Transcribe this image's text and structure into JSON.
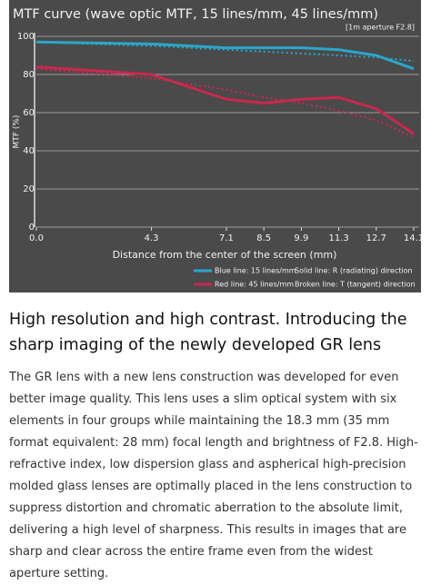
{
  "chart_data": {
    "type": "line",
    "title": "MTF curve (wave optic MTF, 15 lines/mm, 45 lines/mm)",
    "subtitle": "[1m aperture F2.8]",
    "x_label": "Distance from the center of the screen (mm)",
    "y_label": "MTF (%)",
    "x": [
      0,
      4.3,
      7.1,
      8.5,
      9.9,
      11.3,
      12.7,
      14.1
    ],
    "series": [
      {
        "color": "#2ba6c9",
        "dashed": false,
        "values": [
          97,
          96,
          94,
          94,
          94,
          93,
          90,
          83
        ]
      },
      {
        "color": "#2ba6c9",
        "dashed": true,
        "values": [
          97,
          95,
          93,
          92,
          91,
          90,
          89,
          87
        ]
      },
      {
        "color": "#c9284f",
        "dashed": false,
        "values": [
          84,
          80,
          67,
          65,
          67,
          68,
          62,
          49
        ]
      },
      {
        "color": "#c9284f",
        "dashed": true,
        "values": [
          83,
          78,
          72,
          68,
          65,
          61,
          56,
          47
        ]
      }
    ],
    "legend": [
      {
        "text": "Blue line: 15 lines/mm",
        "color": "#2ba6c9"
      },
      {
        "text": "Solid line: R (radiating) direction"
      },
      {
        "text": "Red line: 45 lines/mm",
        "color": "#c9284f"
      },
      {
        "text": "Broken line: T (tangent) direction"
      }
    ],
    "xlim": [
      0,
      14.1
    ],
    "xticks": [
      {
        "value": 0,
        "label": "0.0"
      },
      4.3,
      7.1,
      8.5,
      9.9,
      11.3,
      12.7,
      14.1
    ],
    "ylim": [
      0,
      100
    ],
    "yticks": [
      0,
      20,
      40,
      60,
      80,
      100
    ],
    "grid": true
  },
  "heading": "High resolution and high contrast. Introducing the sharp imaging of the newly developed GR lens",
  "body": "The GR lens with a new lens construction was developed for even better image quality. This lens uses a slim optical system with six elements in four groups while maintaining the 18.3 mm (35 mm format equivalent: 28 mm) focal length and brightness of F2.8. High-refractive index, low dispersion glass and aspherical high-precision molded glass lenses are optimally placed in the lens construction to suppress distortion and chromatic aberration to the absolute limit, delivering a high level of sharpness. This results in images that are sharp and clear across the entire frame even from the widest aperture setting."
}
